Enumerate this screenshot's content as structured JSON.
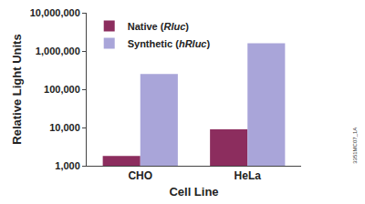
{
  "chart_data": {
    "type": "bar",
    "categories": [
      "CHO",
      "HeLa"
    ],
    "series": [
      {
        "name": "Native (Rluc)",
        "color": "#8c2d5e",
        "values": [
          1800,
          9000
        ]
      },
      {
        "name": "Synthetic (hRluc)",
        "color": "#a9a5d9",
        "values": [
          250000,
          1600000
        ]
      }
    ],
    "xlabel": "Cell Line",
    "ylabel": "Relative Light Units",
    "log": "y",
    "ylim": [
      1000,
      10000000
    ],
    "yticks": [
      {
        "value": 1000,
        "label": "1,000"
      },
      {
        "value": 10000,
        "label": "10,000"
      },
      {
        "value": 100000,
        "label": "100,000"
      },
      {
        "value": 1000000,
        "label": "1,000,000"
      },
      {
        "value": 10000000,
        "label": "10,000,000"
      }
    ],
    "grid": false,
    "legend": "upper left",
    "annotations": [
      "3351MC07_1A"
    ]
  }
}
